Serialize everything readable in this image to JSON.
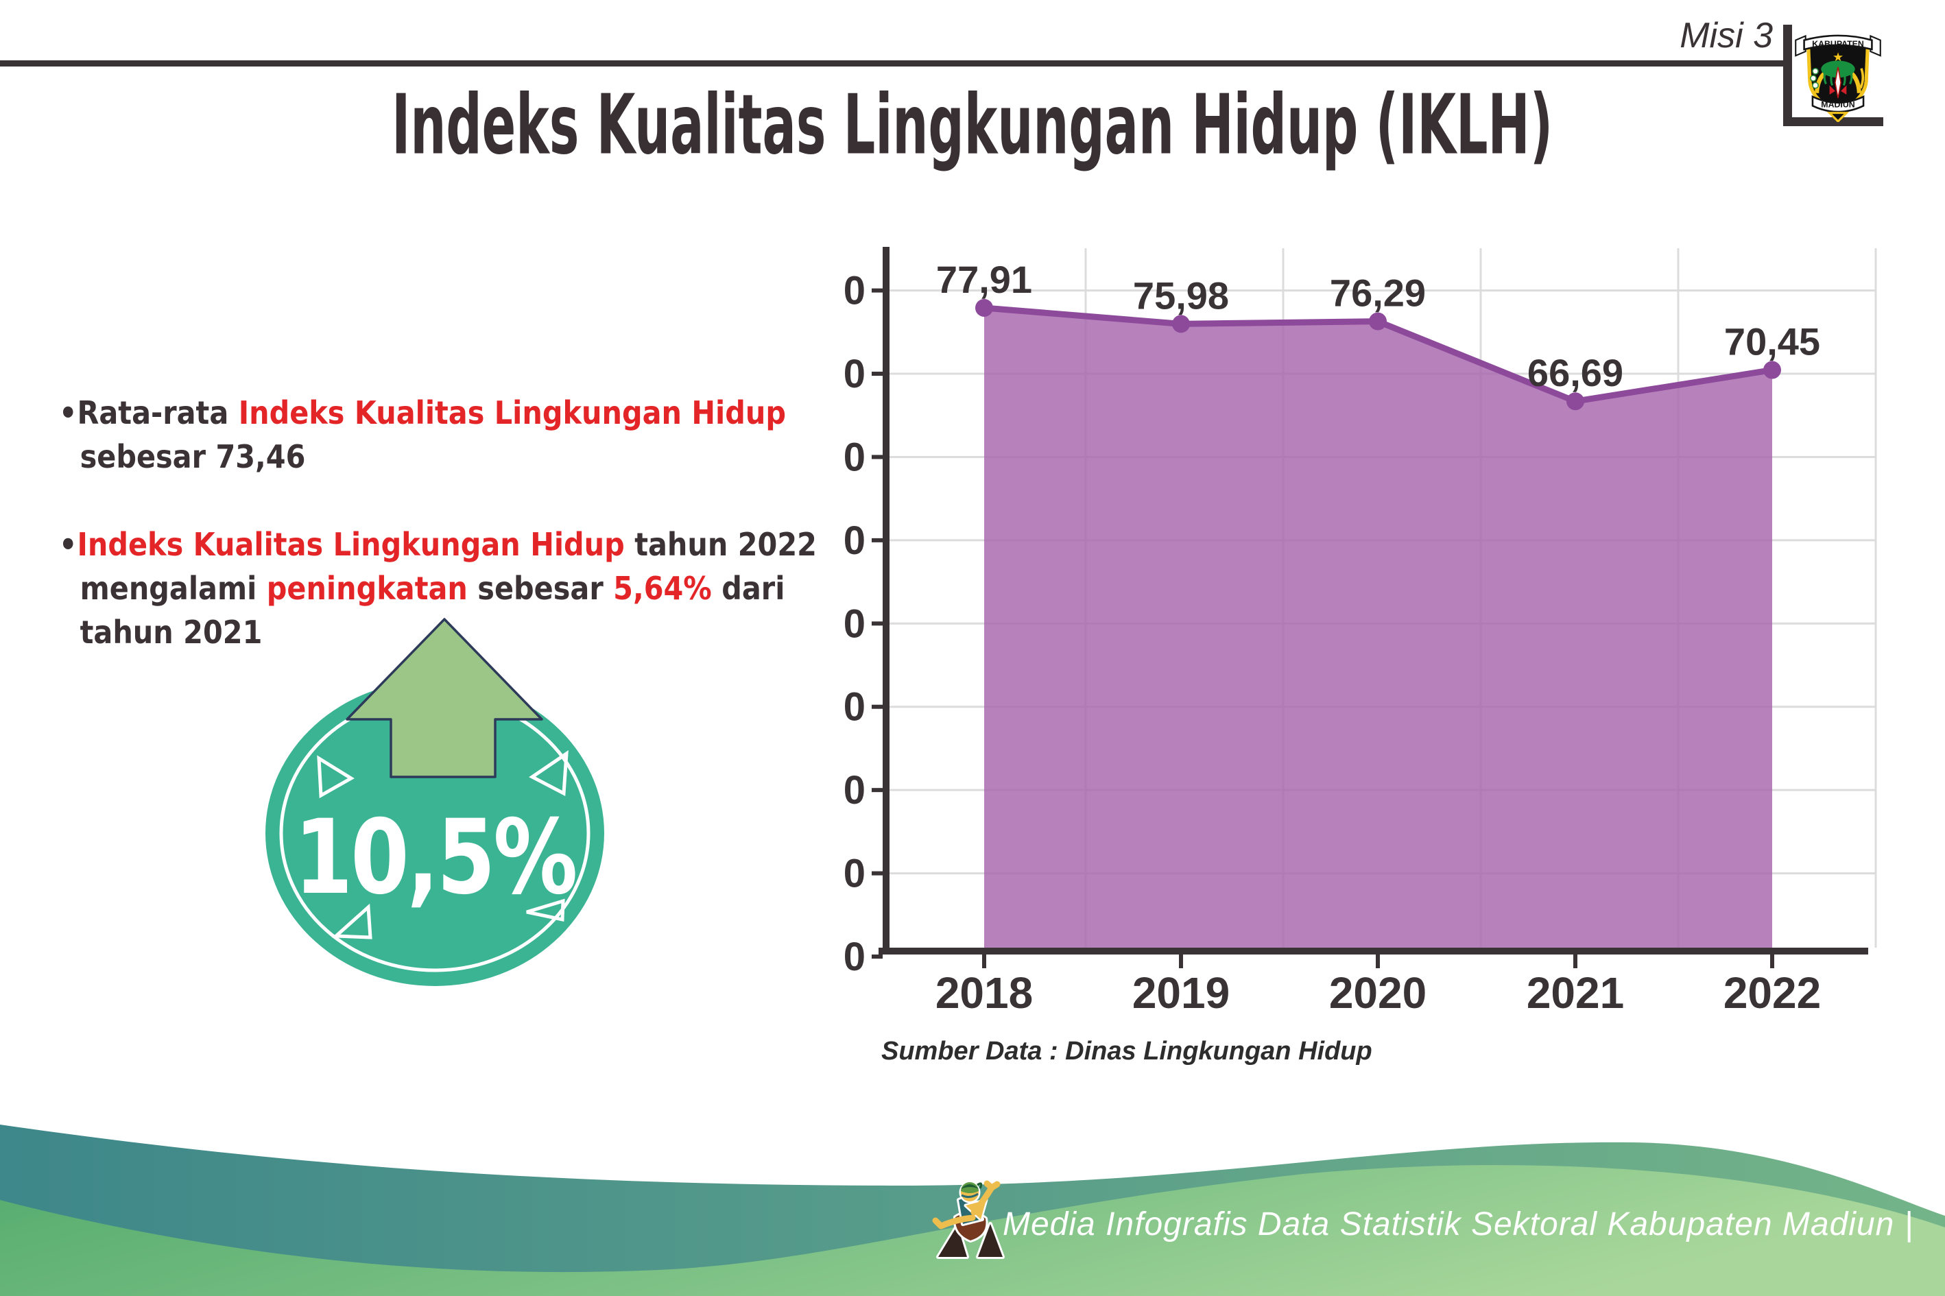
{
  "header": {
    "misi_label": "Misi 3",
    "title": "Indeks Kualitas Lingkungan Hidup (IKLH)",
    "logo": {
      "top_banner": "KABUPATEN",
      "bottom_banner": "MADIUN"
    }
  },
  "bullets": [
    {
      "lines": [
        [
          {
            "t": "Rata-rata ",
            "c": "dark"
          },
          {
            "t": "Indeks Kualitas Lingkungan Hidup",
            "c": "red"
          }
        ],
        [
          {
            "t": "sebesar 73,46",
            "c": "dark"
          }
        ]
      ]
    },
    {
      "lines": [
        [
          {
            "t": "Indeks Kualitas Lingkungan Hidup",
            "c": "red"
          },
          {
            "t": " tahun 2022",
            "c": "dark"
          }
        ],
        [
          {
            "t": "mengalami ",
            "c": "dark"
          },
          {
            "t": "peningkatan",
            "c": "red"
          },
          {
            "t": " sebesar ",
            "c": "dark"
          },
          {
            "t": "5,64%",
            "c": "red"
          },
          {
            "t": " dari",
            "c": "dark"
          }
        ],
        [
          {
            "t": "tahun 2021",
            "c": "dark"
          }
        ]
      ]
    }
  ],
  "badge": {
    "value": "10,5%",
    "direction": "up",
    "circle_color": "#3ab493",
    "arrow_color": "#9cc687"
  },
  "chart_data": {
    "type": "area",
    "title": "",
    "x": [
      "2018",
      "2019",
      "2020",
      "2021",
      "2022"
    ],
    "series": [
      {
        "name": "IKLH",
        "values": [
          77.91,
          75.98,
          76.29,
          66.69,
          70.45
        ]
      }
    ],
    "data_labels": [
      "77,91",
      "75,98",
      "76,29",
      "66,69",
      "70,45"
    ],
    "ylim": [
      0,
      80
    ],
    "yticks": [
      0,
      10,
      20,
      30,
      40,
      50,
      60,
      70,
      80
    ],
    "grid": true,
    "legend": "none",
    "line_color": "#8d4a9b",
    "fill_color": "#b687bb",
    "axis_color": "#3a3335"
  },
  "source_note": "Sumber Data : Dinas Lingkungan Hidup",
  "footer": {
    "text": "Media Infografis Data Statistik Sektoral Kabupaten Madiun |"
  },
  "colors": {
    "text_dark": "#3a3234",
    "text_red": "#e42528",
    "footer_teal": "#3e878a",
    "footer_green": "#54ab6d"
  }
}
